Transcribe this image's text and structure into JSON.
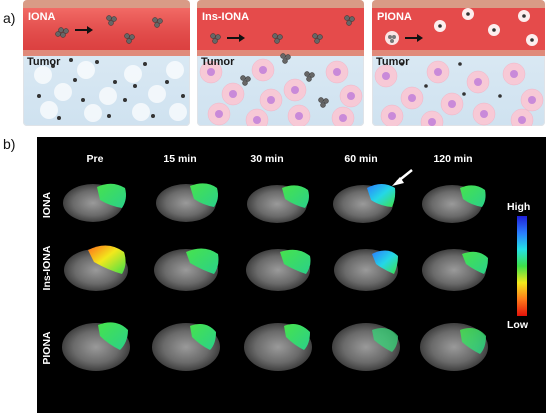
{
  "panel_a_label": "a)",
  "panel_b_label": "b)",
  "schematics": [
    {
      "title": "IONA",
      "tissue_label": "Tumor"
    },
    {
      "title": "Ins-IONA",
      "tissue_label": "Tumor"
    },
    {
      "title": "PIONA",
      "tissue_label": "Tumor"
    }
  ],
  "timepoints": [
    "Pre",
    "15 min",
    "30 min",
    "60 min",
    "120 min"
  ],
  "rows": [
    "IONA",
    "Ins-IONA",
    "PIONA"
  ],
  "scale": {
    "high": "High",
    "low": "Low"
  },
  "colors": {
    "vessel_red": "#e54b4b",
    "tissue_blue": "#dbe9f5",
    "cell_pink": "#f7c9d6",
    "nucleus_purple": "#c98ad9",
    "arrow_white": "#ffffff"
  },
  "icons": [
    "right-arrow-icon",
    "nanoparticle-cluster-icon",
    "white-pointer-arrow-icon"
  ]
}
